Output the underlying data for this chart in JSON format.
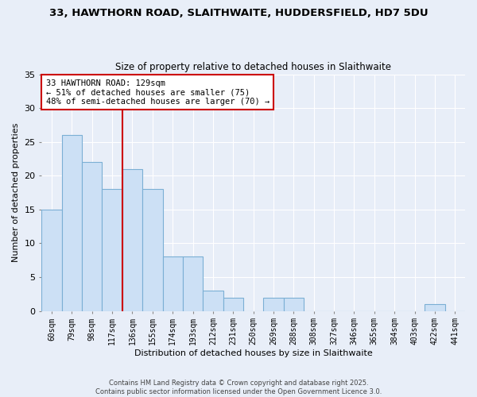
{
  "title1": "33, HAWTHORN ROAD, SLAITHWAITE, HUDDERSFIELD, HD7 5DU",
  "title2": "Size of property relative to detached houses in Slaithwaite",
  "xlabel": "Distribution of detached houses by size in Slaithwaite",
  "ylabel": "Number of detached properties",
  "bar_labels": [
    "60sqm",
    "79sqm",
    "98sqm",
    "117sqm",
    "136sqm",
    "155sqm",
    "174sqm",
    "193sqm",
    "212sqm",
    "231sqm",
    "250sqm",
    "269sqm",
    "288sqm",
    "308sqm",
    "327sqm",
    "346sqm",
    "365sqm",
    "384sqm",
    "403sqm",
    "422sqm",
    "441sqm"
  ],
  "bar_values": [
    15,
    26,
    22,
    18,
    21,
    18,
    8,
    8,
    3,
    2,
    0,
    2,
    2,
    0,
    0,
    0,
    0,
    0,
    0,
    1,
    0
  ],
  "bar_color": "#cce0f5",
  "bar_edge_color": "#7bafd4",
  "vline_x": 3.5,
  "vline_color": "#cc0000",
  "annotation_text": "33 HAWTHORN ROAD: 129sqm\n← 51% of detached houses are smaller (75)\n48% of semi-detached houses are larger (70) →",
  "annotation_box_color": "#ffffff",
  "annotation_box_edge_color": "#cc0000",
  "ylim": [
    0,
    35
  ],
  "yticks": [
    0,
    5,
    10,
    15,
    20,
    25,
    30,
    35
  ],
  "bg_color": "#e8eef8",
  "grid_color": "#ffffff",
  "footer": "Contains HM Land Registry data © Crown copyright and database right 2025.\nContains public sector information licensed under the Open Government Licence 3.0."
}
